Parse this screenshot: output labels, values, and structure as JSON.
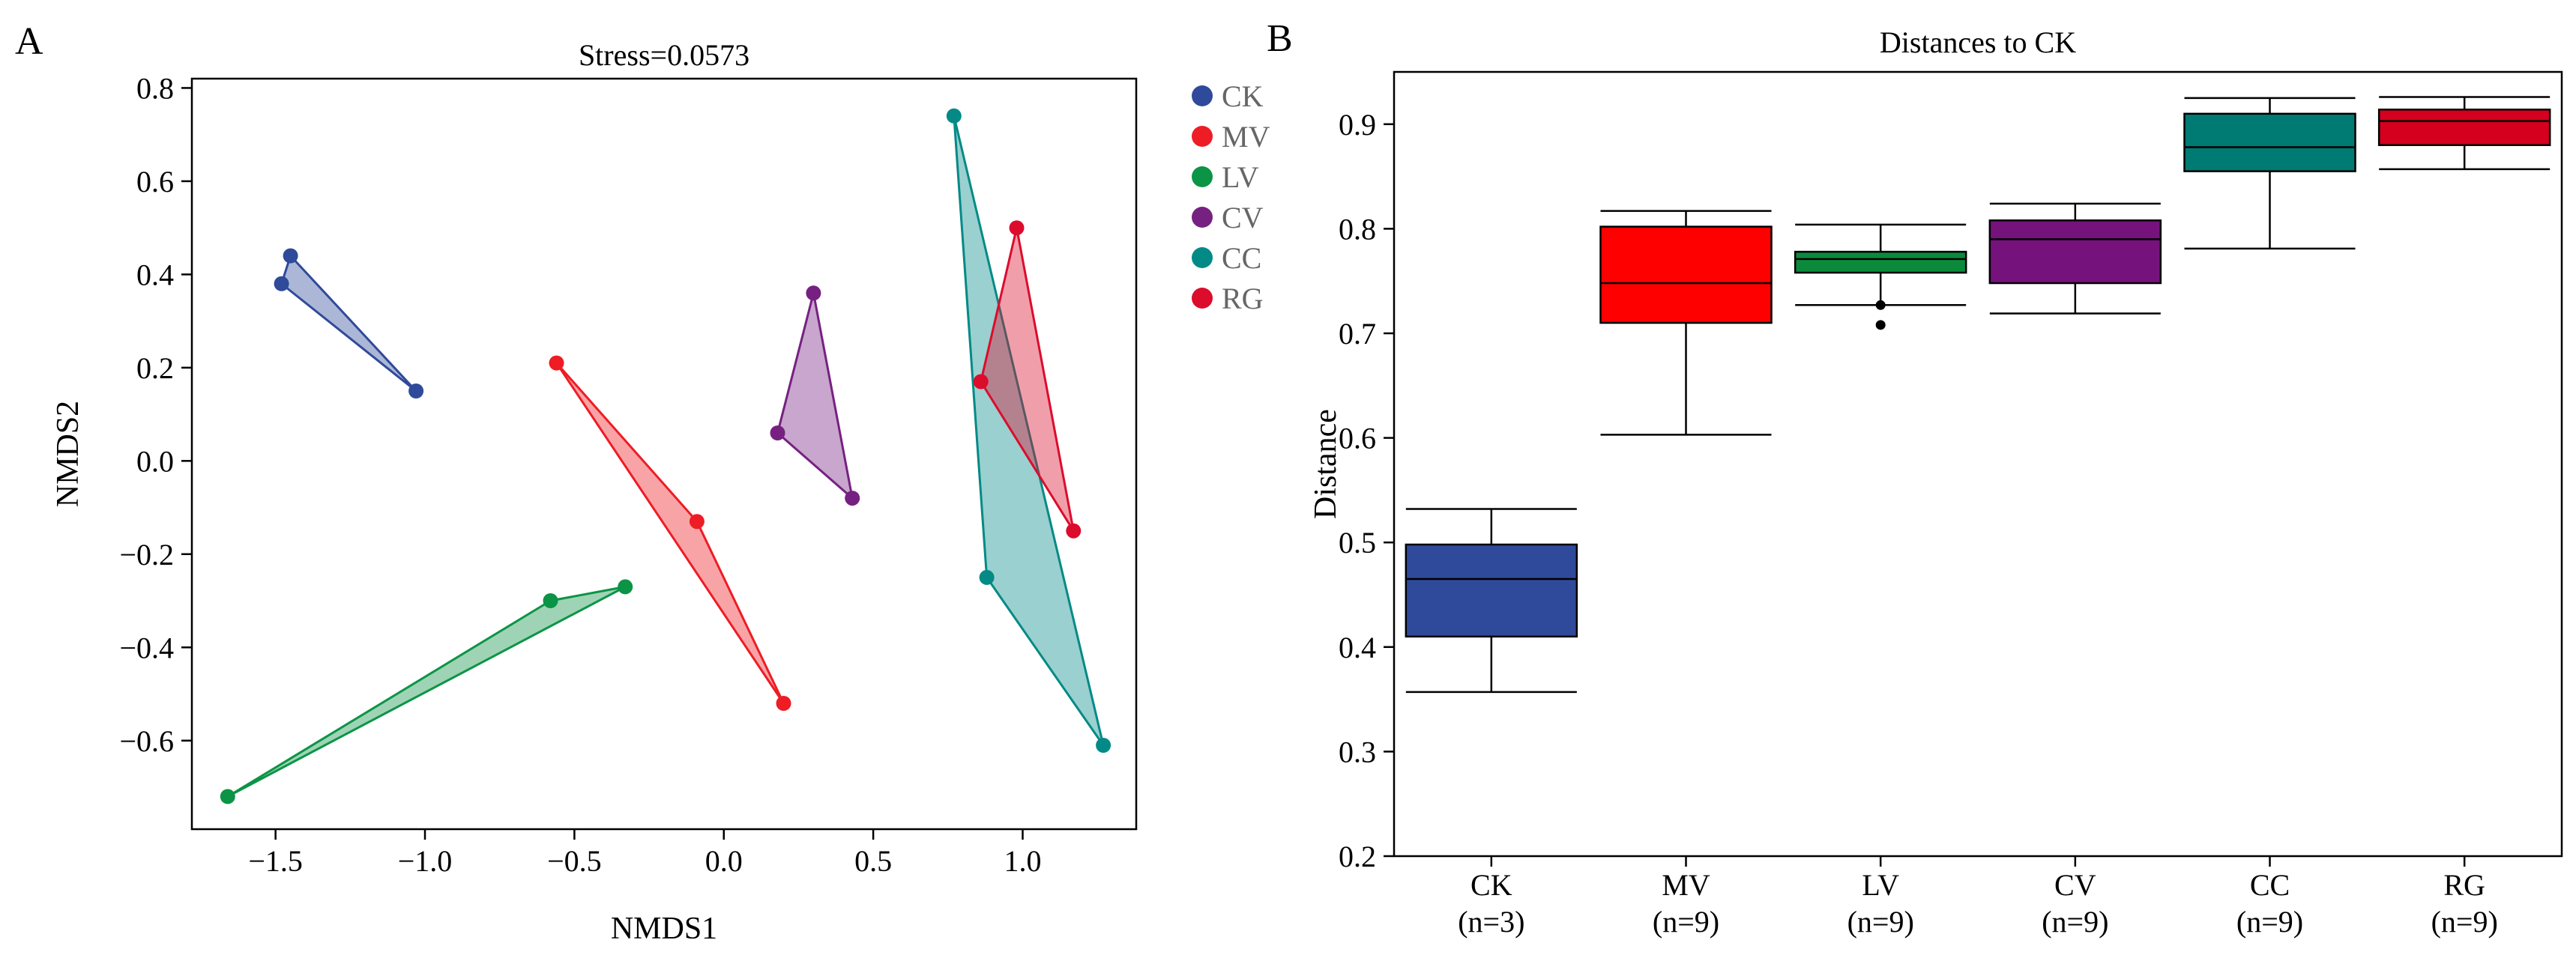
{
  "panel_a_label": "A",
  "panel_b_label": "B",
  "chart_data": [
    {
      "type": "scatter",
      "subtype": "nmds-convex-hulls",
      "title": "Stress=0.0573",
      "xlabel": "NMDS1",
      "ylabel": "NMDS2",
      "xlim": [
        -1.78,
        1.38
      ],
      "ylim": [
        -0.79,
        0.82
      ],
      "xticks": [
        -1.5,
        -1.0,
        -0.5,
        0.0,
        0.5,
        1.0
      ],
      "xtick_labels": [
        "−1.5",
        "−1.0",
        "−0.5",
        "0.0",
        "0.5",
        "1.0"
      ],
      "yticks": [
        0.8,
        0.6,
        0.4,
        0.2,
        0.0,
        -0.2,
        -0.4,
        -0.6
      ],
      "ytick_labels": [
        "0.8",
        "0.6",
        "0.4",
        "0.2",
        "0.0",
        "−0.2",
        "−0.4",
        "−0.6"
      ],
      "legend_position": "outside-top-right",
      "series": [
        {
          "name": "CK",
          "color": "#2f4a9a",
          "points": [
            [
              -1.45,
              0.44
            ],
            [
              -1.48,
              0.38
            ],
            [
              -1.03,
              0.15
            ]
          ]
        },
        {
          "name": "MV",
          "color": "#ee1c24",
          "points": [
            [
              -0.56,
              0.21
            ],
            [
              -0.09,
              -0.13
            ],
            [
              0.2,
              -0.52
            ]
          ]
        },
        {
          "name": "LV",
          "color": "#0c9446",
          "points": [
            [
              -0.58,
              -0.3
            ],
            [
              -0.33,
              -0.27
            ],
            [
              -1.66,
              -0.72
            ]
          ]
        },
        {
          "name": "CV",
          "color": "#762181",
          "points": [
            [
              0.3,
              0.36
            ],
            [
              0.18,
              0.06
            ],
            [
              0.43,
              -0.08
            ]
          ]
        },
        {
          "name": "CC",
          "color": "#038a86",
          "points": [
            [
              0.77,
              0.74
            ],
            [
              0.88,
              -0.25
            ],
            [
              1.27,
              -0.61
            ]
          ]
        },
        {
          "name": "RG",
          "color": "#dc0c2c",
          "points": [
            [
              0.98,
              0.5
            ],
            [
              0.86,
              0.17
            ],
            [
              1.17,
              -0.15
            ]
          ]
        }
      ]
    },
    {
      "type": "box",
      "title": "Distances to CK",
      "xlabel": "",
      "ylabel": "Distance",
      "ylim": [
        0.2,
        0.95
      ],
      "yticks": [
        0.2,
        0.3,
        0.4,
        0.5,
        0.6,
        0.7,
        0.8,
        0.9
      ],
      "ytick_labels": [
        "0.2",
        "0.3",
        "0.4",
        "0.5",
        "0.6",
        "0.7",
        "0.8",
        "0.9"
      ],
      "categories": [
        "CK",
        "MV",
        "LV",
        "CV",
        "CC",
        "RG"
      ],
      "category_n": [
        "(n=3)",
        "(n=9)",
        "(n=9)",
        "(n=9)",
        "(n=9)",
        "(n=9)"
      ],
      "boxes": [
        {
          "name": "CK",
          "color": "#2f4a9a",
          "whisker_low": 0.357,
          "q1": 0.41,
          "median": 0.465,
          "q3": 0.498,
          "whisker_high": 0.532,
          "outliers": []
        },
        {
          "name": "MV",
          "color": "#fe0000",
          "whisker_low": 0.603,
          "q1": 0.71,
          "median": 0.748,
          "q3": 0.802,
          "whisker_high": 0.817,
          "outliers": []
        },
        {
          "name": "LV",
          "color": "#0b8a3c",
          "whisker_low": 0.727,
          "q1": 0.758,
          "median": 0.771,
          "q3": 0.778,
          "whisker_high": 0.804,
          "outliers": [
            0.727,
            0.708
          ]
        },
        {
          "name": "CV",
          "color": "#76127c",
          "whisker_low": 0.719,
          "q1": 0.748,
          "median": 0.79,
          "q3": 0.808,
          "whisker_high": 0.824,
          "outliers": []
        },
        {
          "name": "CC",
          "color": "#007b74",
          "whisker_low": 0.781,
          "q1": 0.855,
          "median": 0.878,
          "q3": 0.91,
          "whisker_high": 0.925,
          "outliers": []
        },
        {
          "name": "RG",
          "color": "#d4001e",
          "whisker_low": 0.857,
          "q1": 0.88,
          "median": 0.903,
          "q3": 0.914,
          "whisker_high": 0.926,
          "outliers": []
        }
      ]
    }
  ]
}
